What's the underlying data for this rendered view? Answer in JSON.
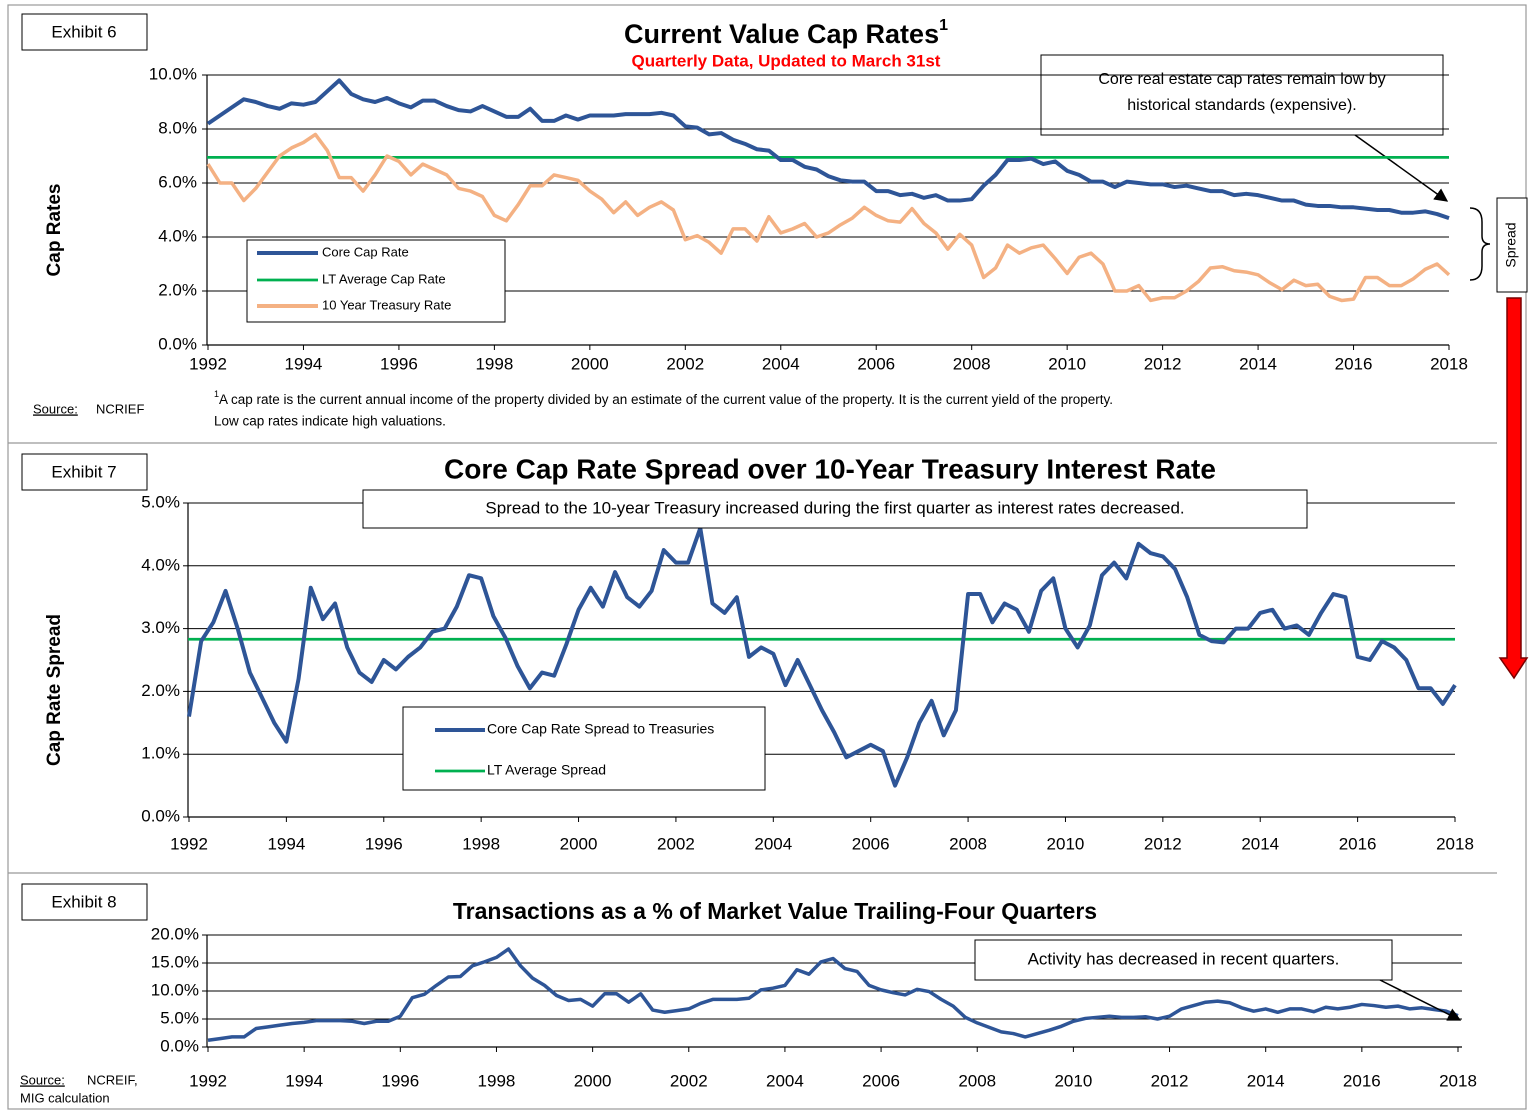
{
  "chart_data": [
    {
      "type": "line",
      "exhibit": "Exhibit 6",
      "title": "Current Value Cap Rates",
      "title_footnote_mark": "1",
      "subtitle": "Quarterly Data, Updated to March 31st",
      "y_label": "Cap Rates",
      "annotation": [
        "Core real estate cap rates remain low by",
        "historical standards (expensive)."
      ],
      "side_label": "Spread",
      "source_label": "Source:",
      "source": "NCRIEF",
      "footnote_mark": "1",
      "footnote": [
        "A cap rate is the current annual income of the property divided by an estimate of the current value of the property. It is the current yield of the property.",
        "Low cap rates indicate high valuations."
      ],
      "grid": true,
      "ylim": [
        0,
        10
      ],
      "yticks": [
        {
          "value": 0,
          "label": "0.0%"
        },
        {
          "value": 2,
          "label": "2.0%"
        },
        {
          "value": 4,
          "label": "4.0%"
        },
        {
          "value": 6,
          "label": "6.0%"
        },
        {
          "value": 8,
          "label": "8.0%"
        },
        {
          "value": 10,
          "label": "10.0%"
        }
      ],
      "categories": [
        "1992",
        null,
        null,
        null,
        null,
        null,
        null,
        null,
        "1994",
        null,
        null,
        null,
        null,
        null,
        null,
        null,
        "1996",
        null,
        null,
        null,
        null,
        null,
        null,
        null,
        "1998",
        null,
        null,
        null,
        null,
        null,
        null,
        null,
        "2000",
        null,
        null,
        null,
        null,
        null,
        null,
        null,
        "2002",
        null,
        null,
        null,
        null,
        null,
        null,
        null,
        "2004",
        null,
        null,
        null,
        null,
        null,
        null,
        null,
        "2006",
        null,
        null,
        null,
        null,
        null,
        null,
        null,
        "2008",
        null,
        null,
        null,
        null,
        null,
        null,
        null,
        "2010",
        null,
        null,
        null,
        null,
        null,
        null,
        null,
        "2012",
        null,
        null,
        null,
        null,
        null,
        null,
        null,
        "2014",
        null,
        null,
        null,
        null,
        null,
        null,
        null,
        "2016",
        null,
        null,
        null,
        null,
        null,
        null,
        null,
        "2018"
      ],
      "series": [
        {
          "name": "Core Cap Rate",
          "color": "#2e5597",
          "values": [
            8.2,
            8.5,
            8.8,
            9.1,
            9.0,
            8.85,
            8.75,
            8.95,
            8.9,
            9.0,
            9.4,
            9.8,
            9.3,
            9.1,
            9.0,
            9.15,
            8.95,
            8.8,
            9.05,
            9.05,
            8.85,
            8.7,
            8.65,
            8.85,
            8.65,
            8.45,
            8.45,
            8.75,
            8.3,
            8.3,
            8.5,
            8.35,
            8.5,
            8.5,
            8.5,
            8.55,
            8.55,
            8.55,
            8.6,
            8.5,
            8.1,
            8.05,
            7.8,
            7.85,
            7.6,
            7.45,
            7.25,
            7.2,
            6.85,
            6.85,
            6.6,
            6.5,
            6.25,
            6.1,
            6.05,
            6.05,
            5.7,
            5.7,
            5.55,
            5.6,
            5.45,
            5.55,
            5.35,
            5.35,
            5.4,
            5.9,
            6.3,
            6.85,
            6.85,
            6.9,
            6.7,
            6.8,
            6.45,
            6.3,
            6.05,
            6.05,
            5.85,
            6.05,
            6.0,
            5.95,
            5.95,
            5.85,
            5.9,
            5.8,
            5.7,
            5.7,
            5.55,
            5.6,
            5.55,
            5.45,
            5.35,
            5.35,
            5.2,
            5.15,
            5.15,
            5.1,
            5.1,
            5.05,
            5.0,
            5.0,
            4.9,
            4.9,
            4.95,
            4.85,
            4.7
          ]
        },
        {
          "name": "10 Year Treasury Rate",
          "color": "#f4b183",
          "values": [
            6.7,
            6.0,
            6.0,
            5.35,
            5.8,
            6.4,
            7.0,
            7.3,
            7.5,
            7.8,
            7.2,
            6.2,
            6.2,
            5.7,
            6.3,
            7.0,
            6.8,
            6.3,
            6.7,
            6.5,
            6.3,
            5.8,
            5.7,
            5.5,
            4.8,
            4.6,
            5.2,
            5.9,
            5.9,
            6.3,
            6.2,
            6.1,
            5.7,
            5.4,
            4.9,
            5.3,
            4.8,
            5.1,
            5.3,
            5.0,
            3.9,
            4.05,
            3.8,
            3.4,
            4.3,
            4.3,
            3.85,
            4.75,
            4.15,
            4.3,
            4.5,
            4.0,
            4.15,
            4.45,
            4.7,
            5.1,
            4.8,
            4.6,
            4.55,
            5.05,
            4.5,
            4.15,
            3.55,
            4.1,
            3.7,
            2.5,
            2.85,
            3.7,
            3.4,
            3.6,
            3.7,
            3.2,
            2.65,
            3.25,
            3.4,
            3.0,
            2.0,
            2.0,
            2.2,
            1.65,
            1.75,
            1.75,
            2.0,
            2.35,
            2.85,
            2.9,
            2.75,
            2.7,
            2.6,
            2.3,
            2.05,
            2.4,
            2.2,
            2.25,
            1.8,
            1.65,
            1.7,
            2.5,
            2.5,
            2.2,
            2.2,
            2.45,
            2.8,
            3.0,
            2.6
          ]
        }
      ],
      "reference_lines": [
        {
          "name": "LT Average Cap Rate",
          "color": "#00b050",
          "value": 6.95
        }
      ]
    },
    {
      "type": "line",
      "exhibit": "Exhibit 7",
      "title": "Core Cap Rate Spread over 10-Year Treasury Interest Rate",
      "y_label": "Cap Rate Spread",
      "annotation": [
        "Spread to the 10-year Treasury increased during the first quarter as interest rates decreased."
      ],
      "grid": true,
      "ylim": [
        0,
        5
      ],
      "yticks": [
        {
          "value": 0,
          "label": "0.0%"
        },
        {
          "value": 1,
          "label": "1.0%"
        },
        {
          "value": 2,
          "label": "2.0%"
        },
        {
          "value": 3,
          "label": "3.0%"
        },
        {
          "value": 4,
          "label": "4.0%"
        },
        {
          "value": 5,
          "label": "5.0%"
        }
      ],
      "categories": [
        "1992",
        null,
        null,
        null,
        null,
        null,
        null,
        null,
        "1994",
        null,
        null,
        null,
        null,
        null,
        null,
        null,
        "1996",
        null,
        null,
        null,
        null,
        null,
        null,
        null,
        "1998",
        null,
        null,
        null,
        null,
        null,
        null,
        null,
        "2000",
        null,
        null,
        null,
        null,
        null,
        null,
        null,
        "2002",
        null,
        null,
        null,
        null,
        null,
        null,
        null,
        "2004",
        null,
        null,
        null,
        null,
        null,
        null,
        null,
        "2006",
        null,
        null,
        null,
        null,
        null,
        null,
        null,
        "2008",
        null,
        null,
        null,
        null,
        null,
        null,
        null,
        "2010",
        null,
        null,
        null,
        null,
        null,
        null,
        null,
        "2012",
        null,
        null,
        null,
        null,
        null,
        null,
        null,
        "2014",
        null,
        null,
        null,
        null,
        null,
        null,
        null,
        "2016",
        null,
        null,
        null,
        null,
        null,
        null,
        null,
        "2018"
      ],
      "series": [
        {
          "name": "Core Cap Rate Spread to Treasuries",
          "color": "#2e5597",
          "values": [
            1.6,
            2.8,
            3.1,
            3.6,
            3.0,
            2.3,
            1.9,
            1.5,
            1.2,
            2.2,
            3.65,
            3.15,
            3.4,
            2.7,
            2.3,
            2.15,
            2.5,
            2.35,
            2.55,
            2.7,
            2.95,
            3.0,
            3.35,
            3.85,
            3.8,
            3.2,
            2.85,
            2.4,
            2.05,
            2.3,
            2.25,
            2.75,
            3.3,
            3.65,
            3.35,
            3.9,
            3.5,
            3.35,
            3.6,
            4.25,
            4.05,
            4.05,
            4.6,
            3.4,
            3.25,
            3.5,
            2.55,
            2.7,
            2.6,
            2.1,
            2.5,
            2.1,
            1.7,
            1.35,
            0.95,
            1.05,
            1.15,
            1.05,
            0.5,
            0.95,
            1.5,
            1.85,
            1.3,
            1.7,
            3.55,
            3.55,
            3.1,
            3.4,
            3.3,
            2.95,
            3.6,
            3.8,
            3.0,
            2.7,
            3.05,
            3.85,
            4.05,
            3.8,
            4.35,
            4.2,
            4.15,
            3.95,
            3.5,
            2.9,
            2.8,
            2.78,
            3.0,
            3.0,
            3.25,
            3.3,
            3.0,
            3.05,
            2.9,
            3.25,
            3.55,
            3.5,
            2.55,
            2.5,
            2.8,
            2.7,
            2.5,
            2.05,
            2.05,
            1.8,
            2.1
          ]
        }
      ],
      "reference_lines": [
        {
          "name": "LT Average Spread",
          "color": "#00b050",
          "value": 2.83
        }
      ]
    },
    {
      "type": "line",
      "exhibit": "Exhibit 8",
      "title": "Transactions as a % of Market Value Trailing-Four Quarters",
      "annotation": [
        "Activity has decreased in recent quarters."
      ],
      "source_label": "Source:",
      "source": [
        "NCREIF,",
        "MIG calculation"
      ],
      "grid": true,
      "ylim": [
        0,
        20
      ],
      "yticks": [
        {
          "value": 0,
          "label": "0.0%"
        },
        {
          "value": 5,
          "label": "5.0%"
        },
        {
          "value": 10,
          "label": "10.0%"
        },
        {
          "value": 15,
          "label": "15.0%"
        },
        {
          "value": 20,
          "label": "20.0%"
        }
      ],
      "categories": [
        "1992",
        null,
        null,
        null,
        null,
        null,
        null,
        null,
        "1994",
        null,
        null,
        null,
        null,
        null,
        null,
        null,
        "1996",
        null,
        null,
        null,
        null,
        null,
        null,
        null,
        "1998",
        null,
        null,
        null,
        null,
        null,
        null,
        null,
        "2000",
        null,
        null,
        null,
        null,
        null,
        null,
        null,
        "2002",
        null,
        null,
        null,
        null,
        null,
        null,
        null,
        "2004",
        null,
        null,
        null,
        null,
        null,
        null,
        null,
        "2006",
        null,
        null,
        null,
        null,
        null,
        null,
        null,
        "2008",
        null,
        null,
        null,
        null,
        null,
        null,
        null,
        "2010",
        null,
        null,
        null,
        null,
        null,
        null,
        null,
        "2012",
        null,
        null,
        null,
        null,
        null,
        null,
        null,
        "2014",
        null,
        null,
        null,
        null,
        null,
        null,
        null,
        "2016",
        null,
        null,
        null,
        null,
        null,
        null,
        null,
        "2018"
      ],
      "series": [
        {
          "color": "#2e5597",
          "values": [
            1.2,
            1.5,
            1.8,
            1.8,
            3.3,
            3.6,
            3.9,
            4.2,
            4.4,
            4.7,
            4.7,
            4.7,
            4.6,
            4.2,
            4.6,
            4.6,
            5.5,
            8.8,
            9.4,
            11.0,
            12.5,
            12.6,
            14.5,
            15.2,
            16.0,
            17.5,
            14.5,
            12.3,
            11.0,
            9.2,
            8.3,
            8.5,
            7.3,
            9.5,
            9.5,
            8.0,
            9.5,
            6.6,
            6.2,
            6.5,
            6.8,
            7.8,
            8.5,
            8.5,
            8.5,
            8.7,
            10.2,
            10.5,
            11.0,
            13.8,
            13.0,
            15.2,
            15.8,
            14.0,
            13.5,
            11.0,
            10.2,
            9.7,
            9.3,
            10.3,
            9.9,
            8.5,
            7.3,
            5.3,
            4.3,
            3.5,
            2.7,
            2.4,
            1.8,
            2.4,
            3.0,
            3.7,
            4.6,
            5.1,
            5.3,
            5.5,
            5.3,
            5.3,
            5.4,
            5.0,
            5.5,
            6.8,
            7.4,
            8.0,
            8.2,
            7.9,
            7.0,
            6.4,
            6.8,
            6.2,
            6.8,
            6.8,
            6.3,
            7.1,
            6.8,
            7.1,
            7.6,
            7.4,
            7.1,
            7.3,
            6.8,
            7.0,
            6.7,
            6.4,
            5.6
          ]
        }
      ]
    }
  ]
}
